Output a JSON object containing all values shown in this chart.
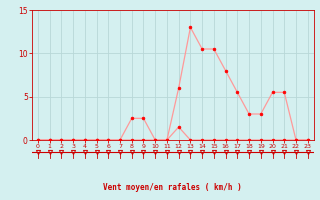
{
  "x": [
    0,
    1,
    2,
    3,
    4,
    5,
    6,
    7,
    8,
    9,
    10,
    11,
    12,
    13,
    14,
    15,
    16,
    17,
    18,
    19,
    20,
    21,
    22,
    23
  ],
  "y_main": [
    0,
    0,
    0,
    0,
    0,
    0,
    0,
    0,
    2.5,
    2.5,
    0,
    0,
    6,
    13,
    10.5,
    10.5,
    8,
    5.5,
    3,
    3,
    5.5,
    5.5,
    0,
    0
  ],
  "y_gust": [
    0,
    0,
    0,
    0,
    0,
    0,
    0,
    0,
    0,
    0,
    0,
    0,
    1.5,
    0,
    0,
    0,
    0,
    0,
    0,
    0,
    0,
    0,
    0,
    0
  ],
  "line_color": "#ff9999",
  "marker_color": "#ff0000",
  "background_color": "#d4f0f0",
  "grid_color": "#b8d8d8",
  "xlabel": "Vent moyen/en rafales ( km/h )",
  "xlabel_color": "#cc0000",
  "tick_color": "#cc0000",
  "ylim": [
    0,
    15
  ],
  "xlim": [
    -0.5,
    23.5
  ],
  "yticks": [
    0,
    5,
    10,
    15
  ],
  "xticks": [
    0,
    1,
    2,
    3,
    4,
    5,
    6,
    7,
    8,
    9,
    10,
    11,
    12,
    13,
    14,
    15,
    16,
    17,
    18,
    19,
    20,
    21,
    22,
    23
  ]
}
